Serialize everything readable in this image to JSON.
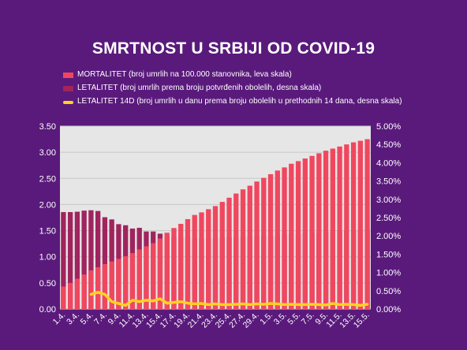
{
  "chart_data": {
    "type": "bar",
    "title": "SMRTNOST U SRBIJI OD COVID-19",
    "categories": [
      "1.4.",
      "2.4.",
      "3.4.",
      "4.4.",
      "5.4.",
      "6.4.",
      "7.4.",
      "8.4.",
      "9.4.",
      "10.4.",
      "11.4.",
      "12.4.",
      "13.4.",
      "14.4.",
      "15.4.",
      "16.4.",
      "17.4.",
      "18.4.",
      "19.4.",
      "20.4.",
      "21.4.",
      "22.4.",
      "23.4.",
      "24.4.",
      "25.4.",
      "26.4.",
      "27.4.",
      "28.4.",
      "29.4.",
      "30.4.",
      "1.5.",
      "2.5.",
      "3.5.",
      "4.5.",
      "5.5.",
      "6.5.",
      "7.5.",
      "8.5.",
      "9.5.",
      "10.5.",
      "11.5.",
      "12.5.",
      "13.5.",
      "14.5.",
      "15.5."
    ],
    "tick_labels": [
      "1.4.",
      "3.4.",
      "5.4.",
      "7.4.",
      "9.4.",
      "11.4.",
      "13.4.",
      "15.4.",
      "17.4.",
      "19.4.",
      "21.4.",
      "23.4.",
      "25.4.",
      "27.4.",
      "29.4.",
      "1.5.",
      "3.5.",
      "5.5.",
      "7.5.",
      "9.5.",
      "11.5.",
      "13.5.",
      "15.5."
    ],
    "series": [
      {
        "name": "MORTALITET (broj umrlih na 100.000 stanovnika, leva skala)",
        "axis": "left",
        "color": "#f0475f",
        "values": [
          0.43,
          0.5,
          0.58,
          0.66,
          0.74,
          0.8,
          0.86,
          0.91,
          0.96,
          1.01,
          1.07,
          1.14,
          1.2,
          1.26,
          1.35,
          1.46,
          1.55,
          1.63,
          1.72,
          1.8,
          1.85,
          1.91,
          1.97,
          2.05,
          2.13,
          2.21,
          2.29,
          2.36,
          2.44,
          2.51,
          2.58,
          2.65,
          2.71,
          2.78,
          2.83,
          2.88,
          2.93,
          2.98,
          3.03,
          3.07,
          3.11,
          3.15,
          3.19,
          3.22,
          3.25
        ]
      },
      {
        "name": "LETALITET (broj umrlih prema broju potvrđenih obolelih, desna skala)",
        "axis": "right",
        "color": "#a0245e",
        "values": [
          2.65,
          2.65,
          2.66,
          2.69,
          2.7,
          2.68,
          2.51,
          2.45,
          2.32,
          2.29,
          2.2,
          2.22,
          2.12,
          2.12,
          2.06,
          2.0,
          1.97,
          1.97,
          1.98,
          1.94,
          1.93,
          1.93,
          1.94,
          1.95,
          1.96,
          1.96,
          1.97,
          1.98,
          1.99,
          1.99,
          2.0,
          2.01,
          2.03,
          2.05,
          2.06,
          2.07,
          2.08,
          2.09,
          2.1,
          2.11,
          2.13,
          2.14,
          2.15,
          2.16,
          2.18
        ]
      },
      {
        "name": "LETALITET 14D (broj umrlih u danu prema broju obolelih u prethodnih 14 dana, desna skala)",
        "axis": "right",
        "color": "#ffd21f",
        "values": [
          null,
          null,
          null,
          null,
          0.4,
          0.46,
          0.4,
          0.2,
          0.15,
          0.1,
          0.24,
          0.2,
          0.24,
          0.22,
          0.28,
          0.16,
          0.18,
          0.2,
          0.16,
          0.14,
          0.15,
          0.12,
          0.14,
          0.12,
          0.12,
          0.13,
          0.14,
          0.12,
          0.14,
          0.13,
          0.15,
          0.14,
          0.12,
          0.13,
          0.12,
          0.12,
          0.13,
          0.12,
          0.11,
          0.15,
          0.12,
          0.13,
          0.12,
          0.1,
          0.13
        ]
      }
    ],
    "y_left": {
      "min": 0,
      "max": 3.5,
      "step": 0.5,
      "ticks": [
        "0.00",
        "0.50",
        "1.00",
        "1.50",
        "2.00",
        "2.50",
        "3.00",
        "3.50"
      ]
    },
    "y_right": {
      "min": 0,
      "max": 5,
      "step": 0.5,
      "ticks": [
        "0.00%",
        "0.50%",
        "1.00%",
        "1.50%",
        "2.00%",
        "2.50%",
        "3.00%",
        "3.50%",
        "4.00%",
        "4.50%",
        "5.00%"
      ]
    },
    "grid": true,
    "legend_position": "top",
    "plot_background": "#e6e6e6",
    "page_background": "#5a1a7c"
  }
}
